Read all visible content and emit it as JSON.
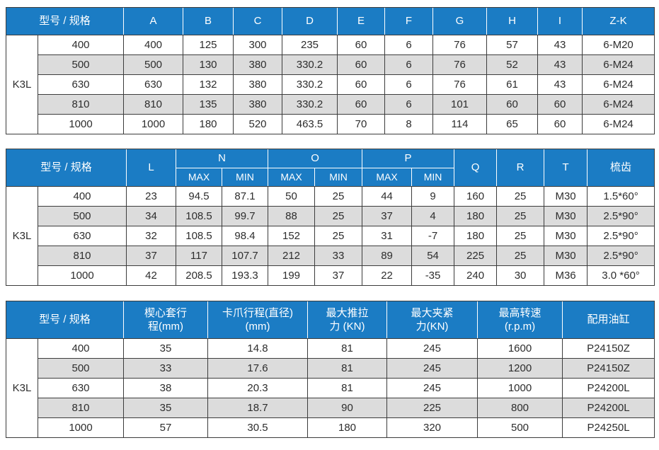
{
  "colors": {
    "header_bg": "#1b7cc4",
    "header_text": "#ffffff",
    "row_bg": "#ffffff",
    "row_alt_bg": "#dcdcdc",
    "border": "#3c3c3c",
    "cell_text": "#2d2d2d"
  },
  "model": {
    "name": "K3L",
    "specs": [
      "400",
      "500",
      "630",
      "810",
      "1000"
    ]
  },
  "tables": [
    {
      "name": "dimensions-table-a-to-zk",
      "header_rows": [
        [
          {
            "label": "型号 / 规格",
            "colspan": 2
          },
          {
            "label": "A"
          },
          {
            "label": "B"
          },
          {
            "label": "C"
          },
          {
            "label": "D"
          },
          {
            "label": "E"
          },
          {
            "label": "F"
          },
          {
            "label": "G"
          },
          {
            "label": "H"
          },
          {
            "label": "I"
          },
          {
            "label": "Z-K"
          }
        ]
      ],
      "rows": [
        [
          "400",
          "400",
          "125",
          "300",
          "235",
          "60",
          "6",
          "76",
          "57",
          "43",
          "6-M20"
        ],
        [
          "500",
          "500",
          "130",
          "380",
          "330.2",
          "60",
          "6",
          "76",
          "52",
          "43",
          "6-M24"
        ],
        [
          "630",
          "630",
          "132",
          "380",
          "330.2",
          "60",
          "6",
          "76",
          "61",
          "43",
          "6-M24"
        ],
        [
          "810",
          "810",
          "135",
          "380",
          "330.2",
          "60",
          "6",
          "101",
          "60",
          "60",
          "6-M24"
        ],
        [
          "1000",
          "1000",
          "180",
          "520",
          "463.5",
          "70",
          "8",
          "114",
          "65",
          "60",
          "6-M24"
        ]
      ]
    },
    {
      "name": "dimensions-table-l-to-comb",
      "header_rows": [
        [
          {
            "label": "型号 / 规格",
            "colspan": 2,
            "rowspan": 2
          },
          {
            "label": "L",
            "rowspan": 2
          },
          {
            "label": "N",
            "colspan": 2
          },
          {
            "label": "O",
            "colspan": 2
          },
          {
            "label": "P",
            "colspan": 2
          },
          {
            "label": "Q",
            "rowspan": 2
          },
          {
            "label": "R",
            "rowspan": 2
          },
          {
            "label": "T",
            "rowspan": 2
          },
          {
            "label": "梳齿",
            "rowspan": 2
          }
        ],
        [
          {
            "label": "MAX"
          },
          {
            "label": "MIN"
          },
          {
            "label": "MAX"
          },
          {
            "label": "MIN"
          },
          {
            "label": "MAX"
          },
          {
            "label": "MIN"
          }
        ]
      ],
      "rows": [
        [
          "400",
          "23",
          "94.5",
          "87.1",
          "50",
          "25",
          "44",
          "9",
          "160",
          "25",
          "M30",
          "1.5*60°"
        ],
        [
          "500",
          "34",
          "108.5",
          "99.7",
          "88",
          "25",
          "37",
          "4",
          "180",
          "25",
          "M30",
          "2.5*90°"
        ],
        [
          "630",
          "32",
          "108.5",
          "98.4",
          "152",
          "25",
          "31",
          "-7",
          "180",
          "25",
          "M30",
          "2.5*90°"
        ],
        [
          "810",
          "37",
          "117",
          "107.7",
          "212",
          "33",
          "89",
          "54",
          "225",
          "25",
          "M30",
          "2.5*90°"
        ],
        [
          "1000",
          "42",
          "208.5",
          "193.3",
          "199",
          "37",
          "22",
          "-35",
          "240",
          "30",
          "M36",
          "3.0 *60°"
        ]
      ]
    },
    {
      "name": "performance-table",
      "header_rows": [
        [
          {
            "label": "型号 / 规格",
            "colspan": 2
          },
          {
            "label": "楔心套行\n程(mm)"
          },
          {
            "label": "卡爪行程(直径)\n(mm)"
          },
          {
            "label": "最大推拉\n力 (KN)"
          },
          {
            "label": "最大夹紧\n力(KN)"
          },
          {
            "label": "最高转速\n(r.p.m)"
          },
          {
            "label": "配用油缸"
          }
        ]
      ],
      "rows": [
        [
          "400",
          "35",
          "14.8",
          "81",
          "245",
          "1600",
          "P24150Z"
        ],
        [
          "500",
          "33",
          "17.6",
          "81",
          "245",
          "1200",
          "P24150Z"
        ],
        [
          "630",
          "38",
          "20.3",
          "81",
          "245",
          "1000",
          "P24200L"
        ],
        [
          "810",
          "35",
          "18.7",
          "90",
          "225",
          "800",
          "P24200L"
        ],
        [
          "1000",
          "57",
          "30.5",
          "180",
          "320",
          "500",
          "P24250L"
        ]
      ]
    }
  ]
}
